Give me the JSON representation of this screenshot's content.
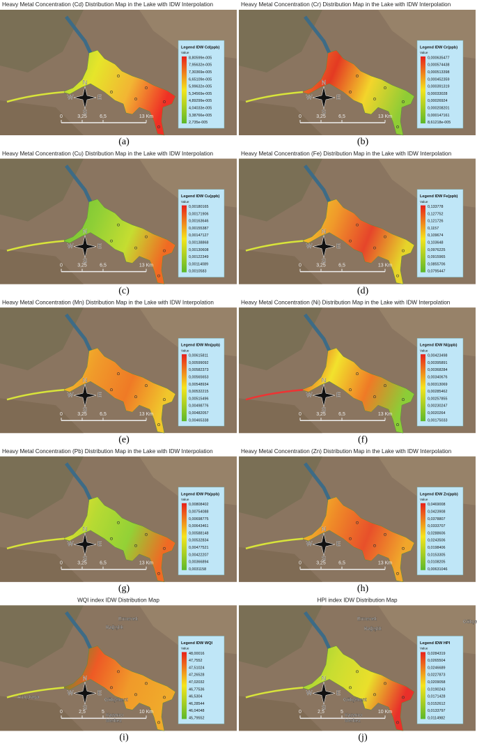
{
  "panels": [
    {
      "title": "Heavy Metal Concentration (Cd) Distribution Map in the Lake with IDW Interpolation",
      "label": "(a)",
      "legend": {
        "title": "Legend IDW Cd(ppb)",
        "value_header": "Value",
        "values": [
          "8,80599e-005",
          "7,95632e-005",
          "7,30369e-005",
          "6,65109e-005",
          "5,99632e-005",
          "5,34569e-005",
          "4,89299e-005",
          "4,04033e-005",
          "3,38766e-005",
          "2,735e-005"
        ]
      },
      "compass": [
        "N",
        "S",
        "W",
        "E"
      ],
      "scale": [
        "0",
        "3,25",
        "6,5",
        "13 Km"
      ]
    },
    {
      "title": "Heavy Metal Concentration (Cr) Distribution Map in the Lake with IDW Interpolation",
      "label": "(b)",
      "legend": {
        "title": "Legend IDW Cr(ppb)",
        "value_header": "Value",
        "values": [
          "0,000635477",
          "0,000574438",
          "0,000513398",
          "0,000452359",
          "0,000391319",
          "0,00033028",
          "0,00026924",
          "0,000208201",
          "0,000147161",
          "8,61218e-005"
        ]
      },
      "compass": [
        "N",
        "S",
        "W",
        "E"
      ],
      "scale": [
        "0",
        "3,25",
        "6,5",
        "13 Km"
      ]
    },
    {
      "title": "Heavy Metal Concentration (Cu) Distribution Map in the Lake with IDW Interpolation",
      "label": "(c)",
      "legend": {
        "title": "Legend IDW Cu(ppb)",
        "value_header": "Value",
        "values": [
          "0,00180165",
          "0,00171906",
          "0,00163646",
          "0,00155387",
          "0,00147127",
          "0,00138868",
          "0,00130608",
          "0,00122349",
          "0,00114089",
          "0,0010583"
        ]
      },
      "compass": [
        "N",
        "S",
        "W",
        "E"
      ],
      "scale": [
        "0",
        "3,25",
        "6,5",
        "13 Km"
      ]
    },
    {
      "title": "Heavy Metal Concentration (Fe) Distribution Map in the Lake with IDW Interpolation",
      "label": "(d)",
      "legend": {
        "title": "Legend IDW Fe(ppb)",
        "value_header": "Value",
        "values": [
          "0,133778",
          "0,127752",
          "0,121726",
          "0,1157",
          "0,109674",
          "0,103648",
          "0,0976225",
          "0,0915965",
          "0,0855706",
          "0,0795447"
        ]
      },
      "compass": [
        "N",
        "S",
        "W",
        "E"
      ],
      "scale": [
        "0",
        "3,25",
        "6,5",
        "13 Km"
      ]
    },
    {
      "title": "Heavy Metal Concentration (Mn) Distribution Map in the Lake with IDW Interpolation",
      "label": "(e)",
      "legend": {
        "title": "Legend IDW Mn(ppb)",
        "value_header": "Value",
        "values": [
          "0,00615811",
          "0,00599092",
          "0,00582373",
          "0,00565653",
          "0,00548934",
          "0,00532215",
          "0,00515496",
          "0,00498776",
          "0,00482057",
          "0,00465338"
        ]
      },
      "compass": [
        "N",
        "S",
        "W",
        "E"
      ],
      "scale": [
        "0",
        "3,25",
        "6,5",
        "13 Km"
      ]
    },
    {
      "title": "Heavy Metal Concentration (Ni) Distribution Map in the Lake with IDW Interpolation",
      "label": "(f)",
      "legend": {
        "title": "Legend IDW Ni(ppb)",
        "value_header": "Value",
        "values": [
          "0,00423498",
          "0,00395891",
          "0,00368284",
          "0,00340676",
          "0,00313069",
          "0,00285462",
          "0,00257855",
          "0,00230247",
          "0,0020264",
          "0,00175033"
        ]
      },
      "compass": [
        "N",
        "S",
        "W",
        "E"
      ],
      "scale": [
        "0",
        "3,25",
        "6,5",
        "13 Km"
      ]
    },
    {
      "title": "Heavy Metal Concentration (Pb) Distribution Map in the Lake with IDW Interpolation",
      "label": "(g)",
      "legend": {
        "title": "Legend IDW Pb(ppb)",
        "value_header": "Value",
        "values": [
          "0,00808402",
          "0,00754088",
          "0,00698775",
          "0,00643461",
          "0,00588148",
          "0,00532834",
          "0,00477521",
          "0,00422207",
          "0,00366894",
          "0,0031158"
        ]
      },
      "compass": [
        "N",
        "S",
        "W",
        "E"
      ],
      "scale": [
        "0",
        "3,25",
        "6,5",
        "13 Km"
      ]
    },
    {
      "title": "Heavy Metal Concentration (Zn) Distribution Map in the Lake with IDW Interpolation",
      "label": "(h)",
      "legend": {
        "title": "Legend IDW Zn(ppb)",
        "value_header": "Value",
        "values": [
          "0,0469008",
          "0,0423908",
          "0,0378807",
          "0,0333707",
          "0,0288606",
          "0,0243506",
          "0,0198406",
          "0,0153305",
          "0,0108205",
          "0,00631046"
        ]
      },
      "compass": [
        "N",
        "S",
        "W",
        "E"
      ],
      "scale": [
        "0",
        "3,25",
        "6,5",
        "13 Km"
      ]
    },
    {
      "title": "WQI index IDW Distribution Map",
      "label": "(i)",
      "legend": {
        "title": "Legend IDW WQI",
        "value_header": "Value",
        "values": [
          "48,00016",
          "47,7552",
          "47,51024",
          "47,26528",
          "47,02032",
          "46,77536",
          "46,5304",
          "46,28544",
          "46,04048",
          "45,79552"
        ]
      },
      "compass": [
        "N",
        "S",
        "W",
        "E"
      ],
      "scale": [
        "0",
        "2,5",
        "5",
        "10 Km"
      ],
      "places": [
        "Ermenek",
        "Bağışlık",
        "Ardıçkaya",
        "Gökçekent",
        "Kazancı",
        "Merkez"
      ]
    },
    {
      "title": "HPI index IDW Distribution Map",
      "label": "(j)",
      "legend": {
        "title": "Legend IDW HPI",
        "value_header": "Value",
        "values": [
          "0,0284319",
          "0,0265504",
          "0,0246689",
          "0,0227873",
          "0,0209058",
          "0,0190243",
          "0,0171428",
          "0,0152612",
          "0,0133797",
          "0,0114982"
        ]
      },
      "compass": [
        "N",
        "S",
        "W",
        "E"
      ],
      "scale": [
        "0",
        "2,5",
        "5",
        "10 Km"
      ],
      "places": [
        "Ermenek",
        "Gökçes",
        "Bağışlık",
        "Gökçekent",
        "Kazancı",
        "Merkez"
      ]
    }
  ]
}
